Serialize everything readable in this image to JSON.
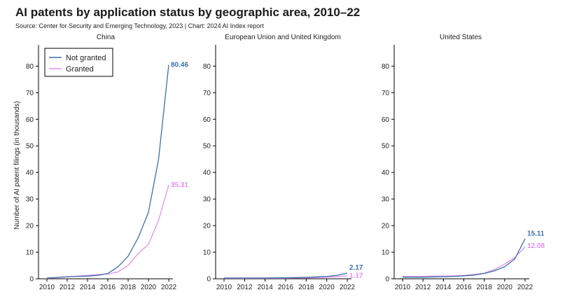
{
  "header": {
    "title": "AI patents by application status by geographic area, 2010–22",
    "source": "Source: Center for Security and Emerging Technology, 2023 | Chart: 2024 AI Index report"
  },
  "colors": {
    "not_granted": "#3d6fa8",
    "granted": "#e08ff0"
  },
  "chart_data": [
    {
      "type": "line",
      "title": "China",
      "ylabel": "Number of AI patent filings (in thousands)",
      "x": [
        2010,
        2011,
        2012,
        2013,
        2014,
        2015,
        2016,
        2017,
        2018,
        2019,
        2020,
        2021,
        2022
      ],
      "x_ticks": [
        2010,
        2012,
        2014,
        2016,
        2018,
        2020,
        2022
      ],
      "y_ticks": [
        0,
        10,
        20,
        30,
        40,
        50,
        60,
        70,
        80
      ],
      "ylim": [
        0,
        88
      ],
      "legend": "top-left",
      "series": [
        {
          "name": "Not granted",
          "color": "#3d6fa8",
          "values": [
            0.3,
            0.5,
            0.8,
            0.9,
            1.0,
            1.3,
            2.0,
            4.5,
            8.5,
            15.5,
            25.0,
            45.0,
            80.46
          ],
          "end_label": "80.46"
        },
        {
          "name": "Granted",
          "color": "#e08ff0",
          "values": [
            0.2,
            0.4,
            0.7,
            1.0,
            1.3,
            1.6,
            1.8,
            2.6,
            5.0,
            9.5,
            13.0,
            22.0,
            35.31
          ],
          "end_label": "35.31"
        }
      ]
    },
    {
      "type": "line",
      "title": "European Union and United Kingdom",
      "x": [
        2010,
        2011,
        2012,
        2013,
        2014,
        2015,
        2016,
        2017,
        2018,
        2019,
        2020,
        2021,
        2022
      ],
      "x_ticks": [
        2010,
        2012,
        2014,
        2016,
        2018,
        2020,
        2022
      ],
      "y_ticks": [
        0,
        10,
        20,
        30,
        40,
        50,
        60,
        70,
        80
      ],
      "ylim": [
        0,
        88
      ],
      "series": [
        {
          "name": "Not granted",
          "color": "#3d6fa8",
          "values": [
            0.3,
            0.3,
            0.3,
            0.3,
            0.3,
            0.35,
            0.4,
            0.45,
            0.55,
            0.7,
            0.9,
            1.3,
            2.17
          ],
          "end_label": "2.17"
        },
        {
          "name": "Granted",
          "color": "#e08ff0",
          "values": [
            0.2,
            0.2,
            0.2,
            0.2,
            0.2,
            0.2,
            0.25,
            0.3,
            0.35,
            0.45,
            0.6,
            0.85,
            1.17
          ],
          "end_label": "1.17"
        }
      ]
    },
    {
      "type": "line",
      "title": "United States",
      "x": [
        2010,
        2011,
        2012,
        2013,
        2014,
        2015,
        2016,
        2017,
        2018,
        2019,
        2020,
        2021,
        2022
      ],
      "x_ticks": [
        2010,
        2012,
        2014,
        2016,
        2018,
        2020,
        2022
      ],
      "y_ticks": [
        0,
        10,
        20,
        30,
        40,
        50,
        60,
        70,
        80
      ],
      "ylim": [
        0,
        88
      ],
      "series": [
        {
          "name": "Not granted",
          "color": "#3d6fa8",
          "values": [
            0.6,
            0.6,
            0.6,
            0.7,
            0.8,
            0.9,
            1.1,
            1.4,
            2.0,
            3.0,
            4.5,
            7.5,
            15.11
          ],
          "end_label": "15.11"
        },
        {
          "name": "Granted",
          "color": "#e08ff0",
          "values": [
            0.9,
            0.9,
            0.9,
            1.0,
            1.0,
            1.1,
            1.3,
            1.6,
            2.1,
            3.5,
            5.5,
            8.0,
            12.08
          ],
          "end_label": "12.08"
        }
      ]
    }
  ]
}
